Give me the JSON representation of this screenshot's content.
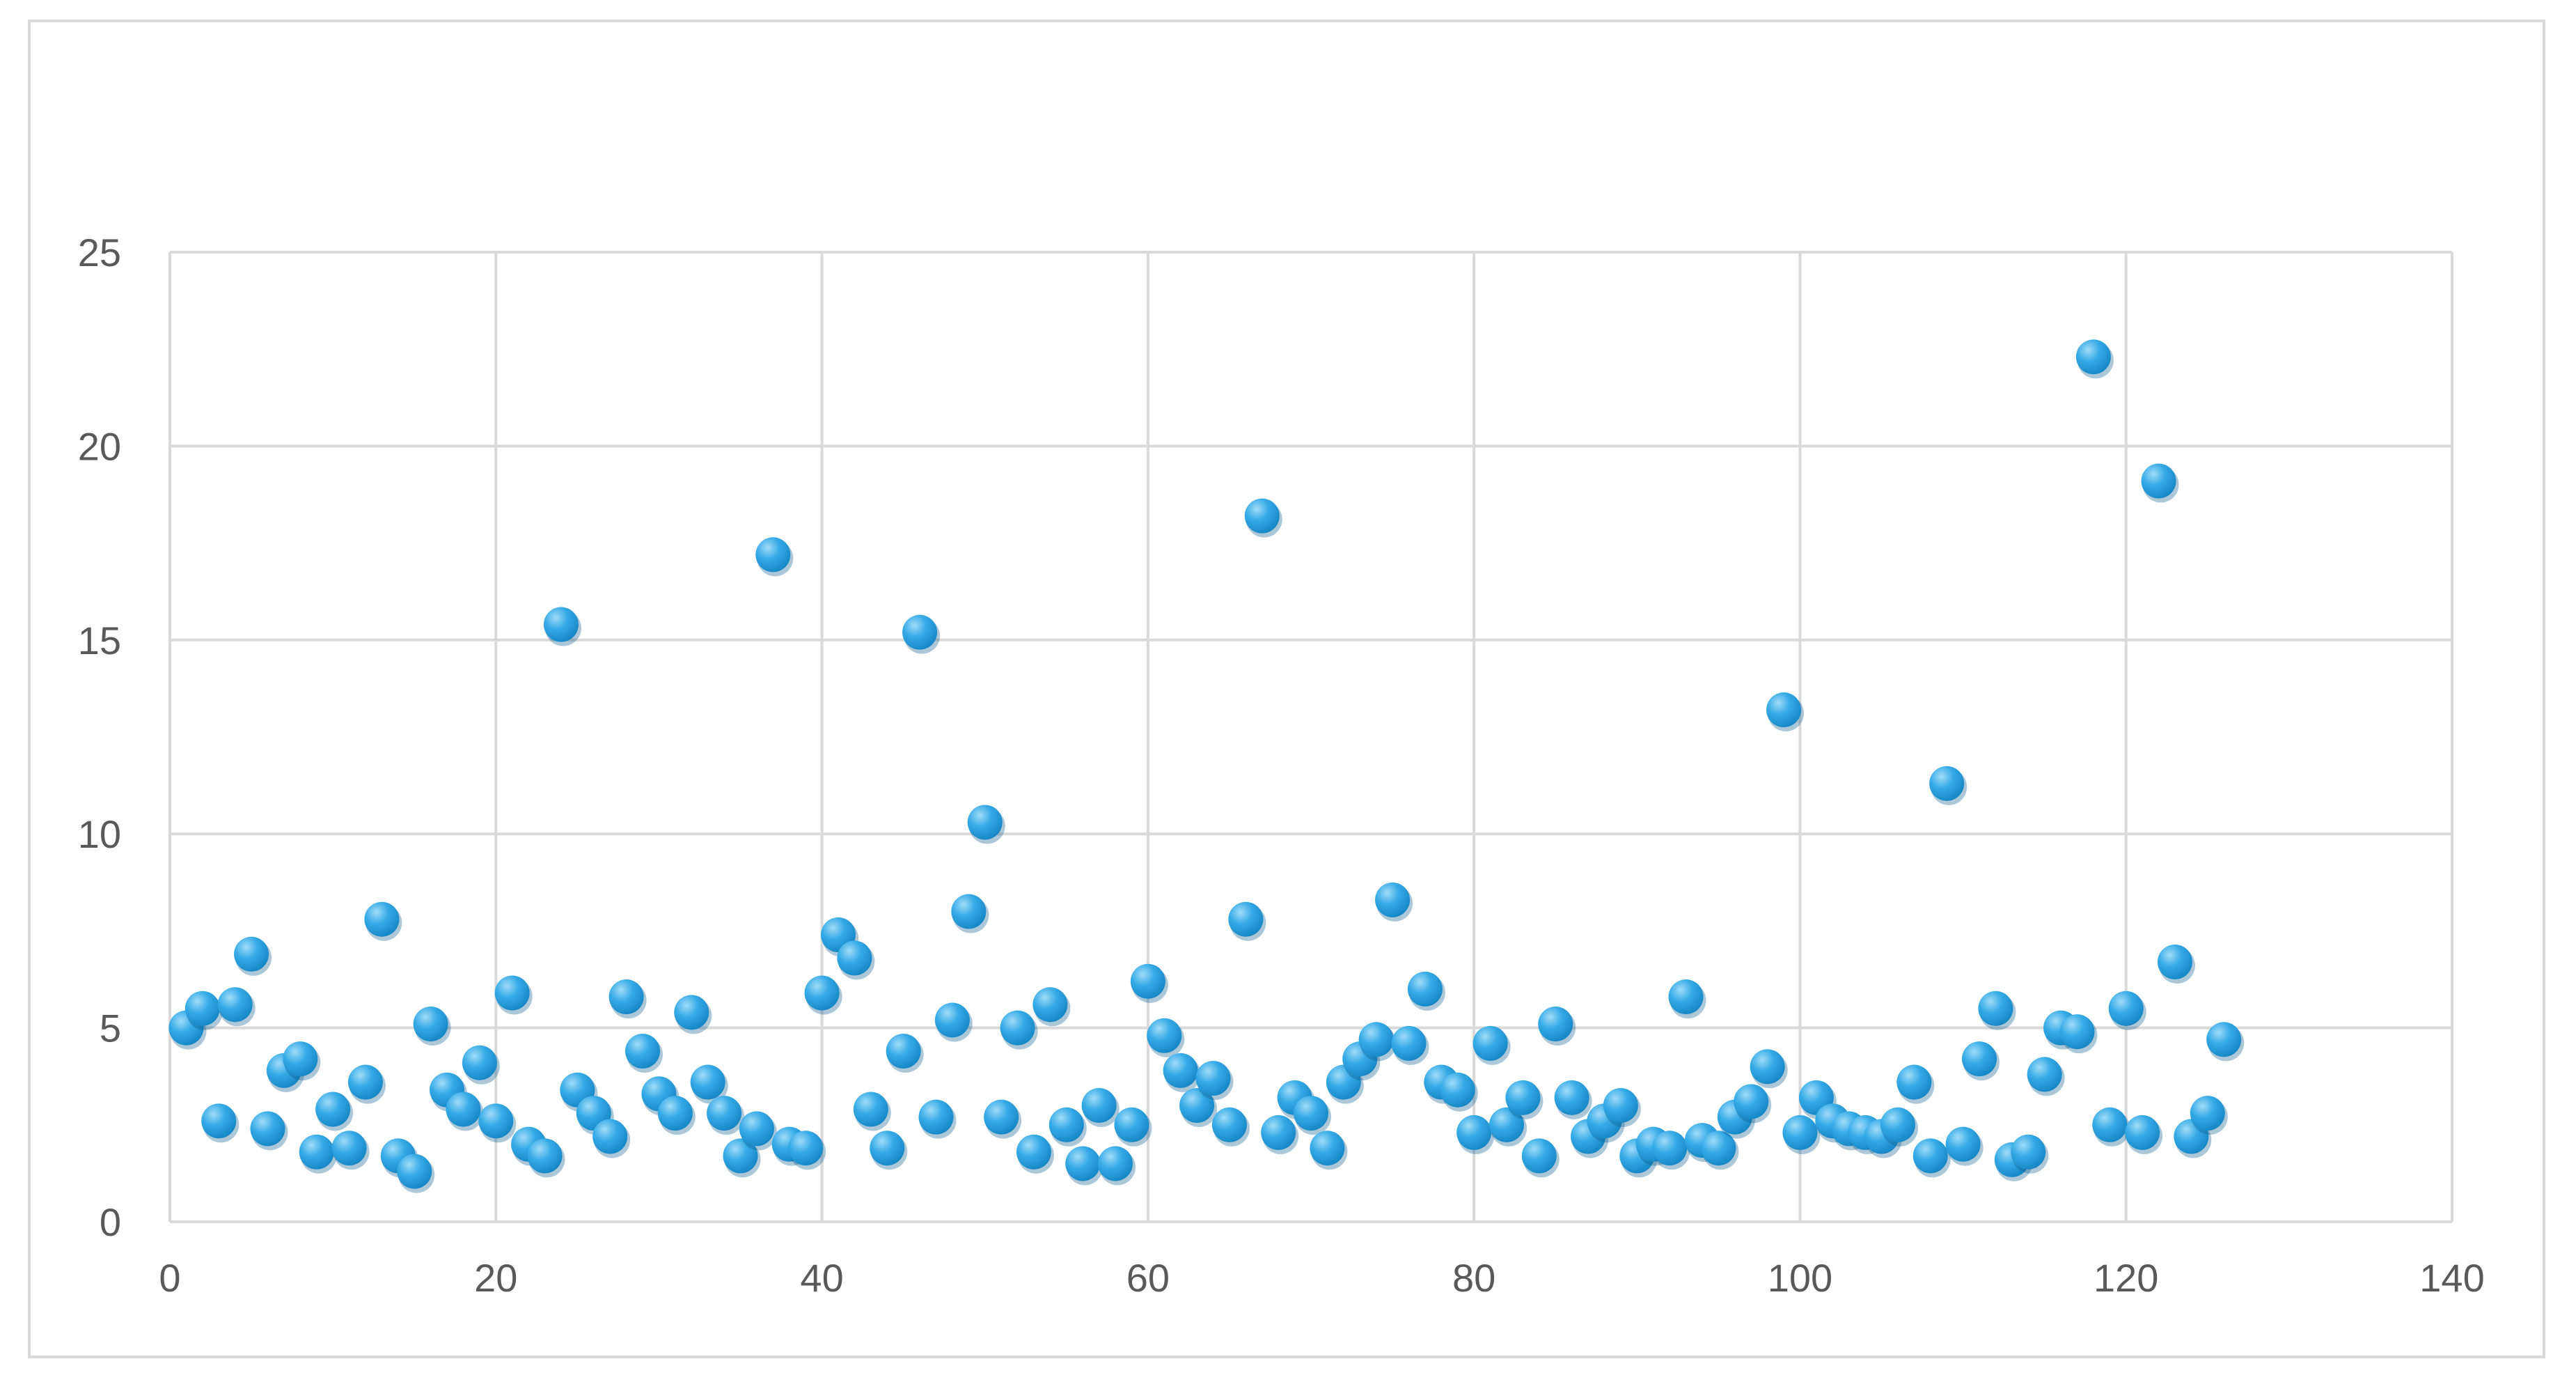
{
  "chart_data": {
    "type": "scatter",
    "title": "",
    "xlabel": "",
    "ylabel": "",
    "xlim": [
      0,
      140
    ],
    "ylim": [
      0,
      25
    ],
    "x_ticks": [
      "0",
      "20",
      "40",
      "60",
      "80",
      "100",
      "120",
      "140"
    ],
    "y_ticks": [
      "0",
      "5",
      "10",
      "15",
      "20",
      "25"
    ],
    "grid": true,
    "legend": "none",
    "colors": {
      "marker": "#1f9ad8",
      "marker_highlight": "#9fdcfa",
      "grid": "#d9d9d9",
      "tick_text": "#595959",
      "frame": "#d9d9d9"
    },
    "points": [
      [
        1,
        5.0
      ],
      [
        2,
        5.5
      ],
      [
        3,
        2.6
      ],
      [
        4,
        5.6
      ],
      [
        5,
        6.9
      ],
      [
        6,
        2.4
      ],
      [
        7,
        3.9
      ],
      [
        8,
        4.2
      ],
      [
        9,
        1.8
      ],
      [
        10,
        2.9
      ],
      [
        11,
        1.9
      ],
      [
        12,
        3.6
      ],
      [
        13,
        7.8
      ],
      [
        14,
        1.7
      ],
      [
        15,
        1.3
      ],
      [
        16,
        5.1
      ],
      [
        17,
        3.4
      ],
      [
        18,
        2.9
      ],
      [
        19,
        4.1
      ],
      [
        20,
        2.6
      ],
      [
        21,
        5.9
      ],
      [
        22,
        2.0
      ],
      [
        23,
        1.7
      ],
      [
        24,
        15.4
      ],
      [
        25,
        3.4
      ],
      [
        26,
        2.8
      ],
      [
        27,
        2.2
      ],
      [
        28,
        5.8
      ],
      [
        29,
        4.4
      ],
      [
        30,
        3.3
      ],
      [
        31,
        2.8
      ],
      [
        32,
        5.4
      ],
      [
        33,
        3.6
      ],
      [
        34,
        2.8
      ],
      [
        35,
        1.7
      ],
      [
        36,
        2.4
      ],
      [
        37,
        17.2
      ],
      [
        38,
        2.0
      ],
      [
        39,
        1.9
      ],
      [
        40,
        5.9
      ],
      [
        41,
        7.4
      ],
      [
        42,
        6.8
      ],
      [
        43,
        2.9
      ],
      [
        44,
        1.9
      ],
      [
        45,
        4.4
      ],
      [
        46,
        15.2
      ],
      [
        47,
        2.7
      ],
      [
        48,
        5.2
      ],
      [
        49,
        8.0
      ],
      [
        50,
        10.3
      ],
      [
        51,
        2.7
      ],
      [
        52,
        5.0
      ],
      [
        53,
        1.8
      ],
      [
        54,
        5.6
      ],
      [
        55,
        2.5
      ],
      [
        56,
        1.5
      ],
      [
        57,
        3.0
      ],
      [
        58,
        1.5
      ],
      [
        59,
        2.5
      ],
      [
        60,
        6.2
      ],
      [
        61,
        4.8
      ],
      [
        62,
        3.9
      ],
      [
        63,
        3.0
      ],
      [
        64,
        3.7
      ],
      [
        65,
        2.5
      ],
      [
        66,
        7.8
      ],
      [
        67,
        18.2
      ],
      [
        68,
        2.3
      ],
      [
        69,
        3.2
      ],
      [
        70,
        2.8
      ],
      [
        71,
        1.9
      ],
      [
        72,
        3.6
      ],
      [
        73,
        4.2
      ],
      [
        74,
        4.7
      ],
      [
        75,
        8.3
      ],
      [
        76,
        4.6
      ],
      [
        77,
        6.0
      ],
      [
        78,
        3.6
      ],
      [
        79,
        3.4
      ],
      [
        80,
        2.3
      ],
      [
        81,
        4.6
      ],
      [
        82,
        2.5
      ],
      [
        83,
        3.2
      ],
      [
        84,
        1.7
      ],
      [
        85,
        5.1
      ],
      [
        86,
        3.2
      ],
      [
        87,
        2.2
      ],
      [
        88,
        2.6
      ],
      [
        89,
        3.0
      ],
      [
        90,
        1.7
      ],
      [
        91,
        2.0
      ],
      [
        92,
        1.9
      ],
      [
        93,
        5.8
      ],
      [
        94,
        2.1
      ],
      [
        95,
        1.9
      ],
      [
        96,
        2.7
      ],
      [
        97,
        3.1
      ],
      [
        98,
        4.0
      ],
      [
        99,
        13.2
      ],
      [
        100,
        2.3
      ],
      [
        101,
        3.2
      ],
      [
        102,
        2.6
      ],
      [
        103,
        2.4
      ],
      [
        104,
        2.3
      ],
      [
        105,
        2.2
      ],
      [
        106,
        2.5
      ],
      [
        107,
        3.6
      ],
      [
        108,
        1.7
      ],
      [
        109,
        11.3
      ],
      [
        110,
        2.0
      ],
      [
        111,
        4.2
      ],
      [
        112,
        5.5
      ],
      [
        113,
        1.6
      ],
      [
        114,
        1.8
      ],
      [
        115,
        3.8
      ],
      [
        116,
        5.0
      ],
      [
        117,
        4.9
      ],
      [
        118,
        22.3
      ],
      [
        119,
        2.5
      ],
      [
        120,
        5.5
      ],
      [
        121,
        2.3
      ],
      [
        122,
        19.1
      ],
      [
        123,
        6.7
      ],
      [
        124,
        2.2
      ],
      [
        125,
        2.8
      ],
      [
        126,
        4.7
      ]
    ]
  }
}
